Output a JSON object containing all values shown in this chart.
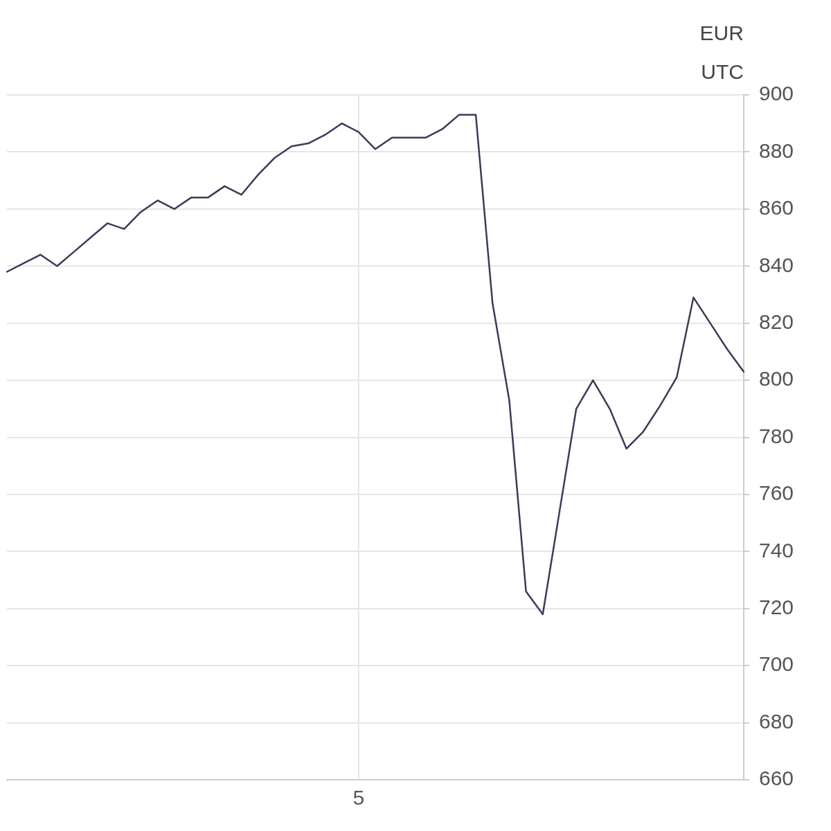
{
  "chart_data": {
    "type": "line",
    "title": "EUR",
    "subtitle": "UTC",
    "categories": [
      null,
      null,
      null,
      null,
      null,
      null,
      null,
      null,
      null,
      null,
      null,
      null,
      null,
      null,
      null,
      null,
      null,
      null,
      null,
      null,
      null,
      "5",
      null,
      null,
      null,
      null,
      null,
      null,
      null,
      null,
      null,
      null,
      null,
      null,
      null,
      null,
      null,
      null,
      null,
      null,
      null,
      null,
      null,
      null,
      null
    ],
    "values": [
      838,
      841,
      844,
      840,
      845,
      850,
      855,
      853,
      859,
      863,
      860,
      864,
      864,
      868,
      865,
      872,
      878,
      882,
      883,
      886,
      890,
      887,
      881,
      885,
      885,
      885,
      888,
      893,
      893,
      827,
      793,
      726,
      718,
      754,
      790,
      800,
      790,
      776,
      782,
      791,
      801,
      829,
      820,
      811,
      803
    ],
    "color": "#3b3b58",
    "ylim": [
      660,
      900
    ],
    "yticks": [
      660,
      680,
      700,
      720,
      740,
      760,
      780,
      800,
      820,
      840,
      860,
      880,
      900
    ],
    "grid": true
  }
}
